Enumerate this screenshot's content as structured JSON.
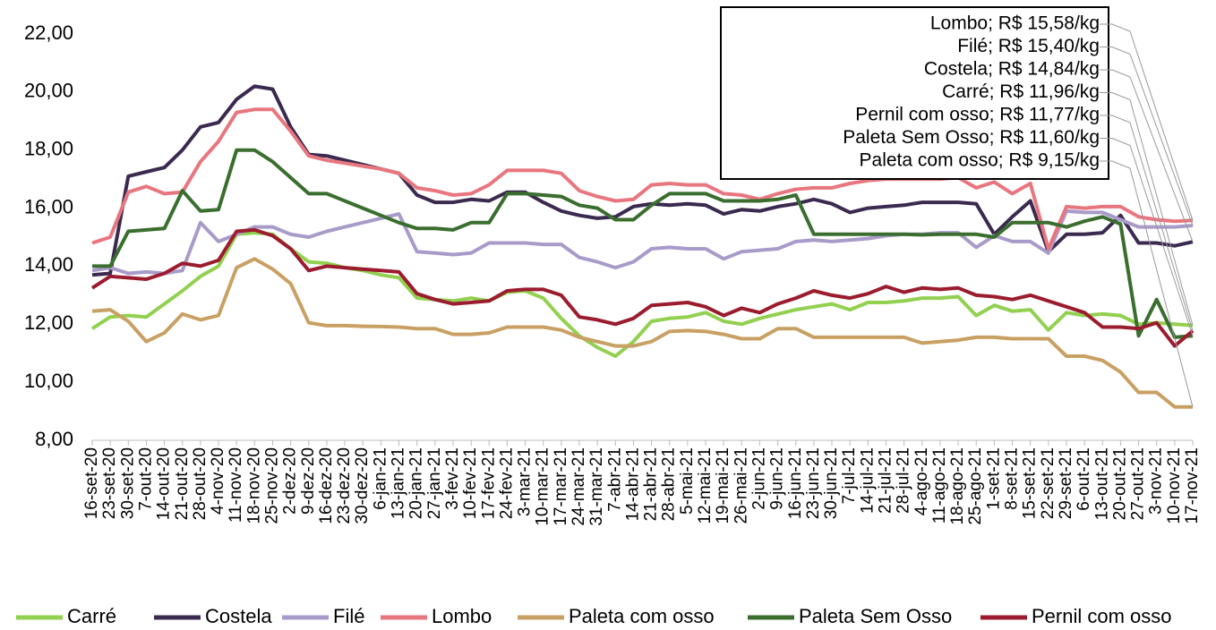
{
  "chart_data": {
    "type": "line",
    "categories": [
      "16-set-20",
      "23-set-20",
      "30-set-20",
      "7-out-20",
      "14-out-20",
      "21-out-20",
      "28-out-20",
      "4-nov-20",
      "11-nov-20",
      "18-nov-20",
      "25-nov-20",
      "2-dez-20",
      "9-dez-20",
      "16-dez-20",
      "23-dez-20",
      "30-dez-20",
      "6-jan-21",
      "13-jan-21",
      "20-jan-21",
      "27-jan-21",
      "3-fev-21",
      "10-fev-21",
      "17-fev-21",
      "24-fev-21",
      "3-mar-21",
      "10-mar-21",
      "17-mar-21",
      "24-mar-21",
      "31-mar-21",
      "7-abr-21",
      "14-abr-21",
      "21-abr-21",
      "28-abr-21",
      "5-mai-21",
      "12-mai-21",
      "19-mai-21",
      "26-mai-21",
      "2-jun-21",
      "9-jun-21",
      "16-jun-21",
      "23-jun-21",
      "30-jun-21",
      "7-jul-21",
      "14-jul-21",
      "21-jul-21",
      "28-jul-21",
      "4-ago-21",
      "11-ago-21",
      "18-ago-21",
      "25-ago-21",
      "1-set-21",
      "8-set-21",
      "15-set-21",
      "22-set-21",
      "29-set-21",
      "6-out-21",
      "13-out-21",
      "20-out-21",
      "27-out-21",
      "3-nov-21",
      "10-nov-21",
      "17-nov-21"
    ],
    "series": [
      {
        "name": "Carré",
        "color": "#92d050",
        "values": [
          11.85,
          12.25,
          12.3,
          12.25,
          12.7,
          13.15,
          13.65,
          14.0,
          15.1,
          15.15,
          15.1,
          14.6,
          14.15,
          14.1,
          13.95,
          13.85,
          13.7,
          13.6,
          12.9,
          12.85,
          12.8,
          12.9,
          12.8,
          13.1,
          13.15,
          12.9,
          12.2,
          11.6,
          11.2,
          10.9,
          11.4,
          12.1,
          12.2,
          12.25,
          12.4,
          12.1,
          12.0,
          12.2,
          12.35,
          12.5,
          12.6,
          12.7,
          12.5,
          12.75,
          12.75,
          12.8,
          12.9,
          12.9,
          12.95,
          12.3,
          12.65,
          12.45,
          12.5,
          11.8,
          12.4,
          12.3,
          12.35,
          12.3,
          12.0,
          12.05,
          12.0,
          11.96
        ]
      },
      {
        "name": "Costela",
        "color": "#3b2a4f",
        "values": [
          13.7,
          13.75,
          17.1,
          17.25,
          17.4,
          18.0,
          18.8,
          18.95,
          19.75,
          20.2,
          20.1,
          18.8,
          17.85,
          17.8,
          17.65,
          17.5,
          17.35,
          17.2,
          16.45,
          16.2,
          16.2,
          16.3,
          16.25,
          16.55,
          16.55,
          16.2,
          15.9,
          15.75,
          15.65,
          15.7,
          16.05,
          16.15,
          16.1,
          16.15,
          16.1,
          15.8,
          15.95,
          15.9,
          16.05,
          16.15,
          16.3,
          16.15,
          15.85,
          16.0,
          16.05,
          16.1,
          16.2,
          16.2,
          16.2,
          16.15,
          15.1,
          15.7,
          16.25,
          14.5,
          15.1,
          15.1,
          15.15,
          15.75,
          14.8,
          14.8,
          14.7,
          14.84
        ]
      },
      {
        "name": "Filé",
        "color": "#a99bc9",
        "values": [
          13.85,
          13.95,
          13.75,
          13.8,
          13.75,
          13.85,
          15.5,
          14.85,
          15.1,
          15.35,
          15.35,
          15.1,
          15.0,
          15.2,
          15.35,
          15.5,
          15.65,
          15.8,
          14.5,
          14.45,
          14.4,
          14.45,
          14.8,
          14.8,
          14.8,
          14.75,
          14.75,
          14.3,
          14.15,
          13.95,
          14.15,
          14.6,
          14.65,
          14.6,
          14.6,
          14.25,
          14.5,
          14.55,
          14.6,
          14.85,
          14.9,
          14.85,
          14.9,
          14.95,
          15.05,
          15.1,
          15.1,
          15.15,
          15.15,
          14.65,
          15.05,
          14.85,
          14.85,
          14.45,
          15.9,
          15.85,
          15.85,
          15.6,
          15.35,
          15.35,
          15.35,
          15.4
        ]
      },
      {
        "name": "Lombo",
        "color": "#e8767f",
        "values": [
          14.8,
          15.0,
          16.55,
          16.75,
          16.5,
          16.55,
          17.6,
          18.3,
          19.3,
          19.4,
          19.4,
          18.65,
          17.8,
          17.65,
          17.55,
          17.45,
          17.35,
          17.2,
          16.7,
          16.6,
          16.45,
          16.5,
          16.8,
          17.3,
          17.3,
          17.3,
          17.2,
          16.6,
          16.4,
          16.25,
          16.3,
          16.8,
          16.85,
          16.8,
          16.8,
          16.5,
          16.45,
          16.3,
          16.5,
          16.65,
          16.7,
          16.7,
          16.85,
          16.95,
          17.0,
          17.0,
          17.0,
          17.0,
          17.05,
          16.7,
          16.9,
          16.5,
          16.85,
          14.6,
          16.05,
          16.0,
          16.05,
          16.05,
          15.7,
          15.6,
          15.55,
          15.58
        ]
      },
      {
        "name": "Paleta com osso",
        "color": "#c9a063",
        "values": [
          12.45,
          12.5,
          12.1,
          11.4,
          11.7,
          12.35,
          12.15,
          12.3,
          13.95,
          14.25,
          13.9,
          13.4,
          12.05,
          11.95,
          11.95,
          11.93,
          11.92,
          11.9,
          11.85,
          11.85,
          11.65,
          11.65,
          11.7,
          11.9,
          11.9,
          11.9,
          11.8,
          11.55,
          11.4,
          11.25,
          11.25,
          11.4,
          11.75,
          11.78,
          11.75,
          11.65,
          11.5,
          11.5,
          11.85,
          11.85,
          11.55,
          11.55,
          11.55,
          11.55,
          11.55,
          11.55,
          11.35,
          11.4,
          11.45,
          11.55,
          11.55,
          11.5,
          11.5,
          11.5,
          10.9,
          10.9,
          10.75,
          10.35,
          9.65,
          9.65,
          9.15,
          9.15
        ]
      },
      {
        "name": "Paleta Sem Osso",
        "color": "#3a6e2f",
        "values": [
          14.0,
          14.0,
          15.2,
          15.25,
          15.3,
          16.6,
          15.9,
          15.95,
          18.0,
          18.0,
          17.6,
          17.05,
          16.5,
          16.5,
          16.25,
          16.0,
          15.75,
          15.5,
          15.3,
          15.3,
          15.25,
          15.5,
          15.5,
          16.5,
          16.5,
          16.45,
          16.4,
          16.1,
          16.0,
          15.6,
          15.6,
          16.1,
          16.5,
          16.5,
          16.5,
          16.25,
          16.25,
          16.25,
          16.3,
          16.45,
          15.1,
          15.1,
          15.1,
          15.1,
          15.1,
          15.1,
          15.08,
          15.1,
          15.1,
          15.1,
          15.0,
          15.5,
          15.5,
          15.5,
          15.35,
          15.55,
          15.7,
          15.45,
          11.6,
          12.85,
          11.55,
          11.6
        ]
      },
      {
        "name": "Pernil com osso",
        "color": "#9b1c2e",
        "values": [
          13.25,
          13.65,
          13.6,
          13.55,
          13.75,
          14.1,
          14.0,
          14.2,
          15.2,
          15.25,
          15.05,
          14.6,
          13.85,
          14.0,
          13.95,
          13.9,
          13.85,
          13.8,
          13.05,
          12.85,
          12.7,
          12.75,
          12.8,
          13.15,
          13.2,
          13.2,
          13.0,
          12.25,
          12.15,
          12.0,
          12.2,
          12.65,
          12.7,
          12.75,
          12.6,
          12.3,
          12.55,
          12.4,
          12.7,
          12.9,
          13.15,
          13.0,
          12.9,
          13.05,
          13.3,
          13.1,
          13.25,
          13.2,
          13.25,
          13.0,
          12.95,
          12.85,
          13.0,
          12.8,
          12.6,
          12.4,
          11.9,
          11.9,
          11.85,
          12.05,
          11.25,
          11.77
        ]
      }
    ],
    "annotations": [
      "Lombo; R$ 15,58/kg",
      "Filé; R$ 15,40/kg",
      "Costela; R$ 14,84/kg",
      "Carré; R$ 11,96/kg",
      "Pernil com osso; R$ 11,77/kg",
      "Paleta Sem Osso; R$ 11,60/kg",
      "Paleta com osso; R$ 9,15/kg"
    ],
    "ylim": [
      8,
      22
    ],
    "yticks": [
      {
        "value": 8,
        "label": "8,00"
      },
      {
        "value": 10,
        "label": "10,00"
      },
      {
        "value": 12,
        "label": "12,00"
      },
      {
        "value": 14,
        "label": "14,00"
      },
      {
        "value": 16,
        "label": "16,00"
      },
      {
        "value": 18,
        "label": "18,00"
      },
      {
        "value": 20,
        "label": "20,00"
      },
      {
        "value": 22,
        "label": "22,00"
      }
    ],
    "grid": false,
    "legend": "bottom"
  }
}
